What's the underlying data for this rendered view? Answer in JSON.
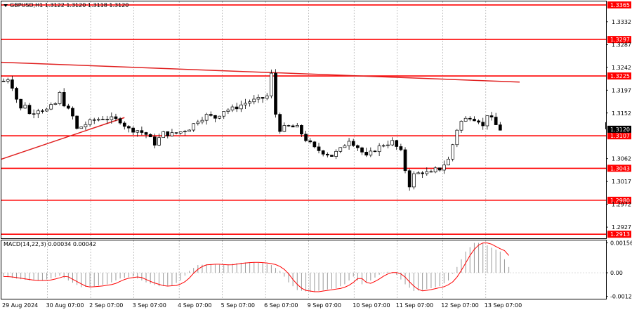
{
  "chart_data": {
    "type": "candlestick",
    "symbol_info": "GBPUSD,H1  1.3122 1.3120 1.3118 1.3120",
    "current_price": 1.312,
    "price_axis_ticks": [
      "1.3365",
      "1.3332",
      "1.3297",
      "1.3287",
      "1.3242",
      "1.3225",
      "1.3197",
      "1.3152",
      "1.3120",
      "1.3107",
      "1.3062",
      "1.3043",
      "1.3017",
      "1.2980",
      "1.2972",
      "1.2927",
      "1.2913"
    ],
    "price_range": [
      1.2905,
      1.3372
    ],
    "levels": [
      {
        "price": 1.3365,
        "label": "1.3365"
      },
      {
        "price": 1.3297,
        "label": "1.3297"
      },
      {
        "price": 1.3225,
        "label": "1.3225"
      },
      {
        "price": 1.3107,
        "label": "1.3107"
      },
      {
        "price": 1.3043,
        "label": "1.3043"
      },
      {
        "price": 1.298,
        "label": "1.2980"
      },
      {
        "price": 1.2913,
        "label": "1.2913"
      }
    ],
    "trendlines": [
      {
        "from": [
          0,
          1.3252
        ],
        "to": [
          119.5,
          1.3213
        ]
      },
      {
        "from": [
          0,
          1.3061
        ],
        "to": [
          28,
          1.3143
        ]
      }
    ],
    "x_labels": [
      "29 Aug 2024",
      "30 Aug 07:00",
      "2 Sep 07:00",
      "3 Sep 07:00",
      "4 Sep 07:00",
      "5 Sep 07:00",
      "6 Sep 07:00",
      "9 Sep 07:00",
      "10 Sep 07:00",
      "11 Sep 07:00",
      "12 Sep 07:00",
      "13 Sep 07:00"
    ],
    "close_path": [
      [
        0,
        1.3215
      ],
      [
        1,
        1.322
      ],
      [
        2,
        1.3205
      ],
      [
        3,
        1.318
      ],
      [
        4,
        1.316
      ],
      [
        5,
        1.317
      ],
      [
        6,
        1.315
      ],
      [
        8,
        1.316
      ],
      [
        10,
        1.3158
      ],
      [
        12,
        1.317
      ],
      [
        13,
        1.319
      ],
      [
        14,
        1.317
      ],
      [
        16,
        1.3145
      ],
      [
        17,
        1.312
      ],
      [
        19,
        1.313
      ],
      [
        21,
        1.3138
      ],
      [
        23,
        1.3142
      ],
      [
        25,
        1.314
      ],
      [
        27,
        1.3137
      ],
      [
        29,
        1.312
      ],
      [
        31,
        1.3118
      ],
      [
        33,
        1.311
      ],
      [
        35,
        1.3092
      ],
      [
        37,
        1.3112
      ],
      [
        39,
        1.311
      ],
      [
        41,
        1.3115
      ],
      [
        43,
        1.3122
      ],
      [
        45,
        1.3138
      ],
      [
        47,
        1.3147
      ],
      [
        49,
        1.3143
      ],
      [
        51,
        1.3157
      ],
      [
        53,
        1.316
      ],
      [
        55,
        1.3168
      ],
      [
        57,
        1.3175
      ],
      [
        59,
        1.3178
      ],
      [
        61,
        1.3185
      ],
      [
        62,
        1.3228
      ],
      [
        63,
        1.315
      ],
      [
        64,
        1.312
      ],
      [
        66,
        1.3125
      ],
      [
        68,
        1.3123
      ],
      [
        70,
        1.31
      ],
      [
        72,
        1.3082
      ],
      [
        74,
        1.3075
      ],
      [
        76,
        1.3068
      ],
      [
        78,
        1.308
      ],
      [
        80,
        1.31
      ],
      [
        82,
        1.3085
      ],
      [
        84,
        1.3065
      ],
      [
        86,
        1.308
      ],
      [
        88,
        1.309
      ],
      [
        90,
        1.3095
      ],
      [
        92,
        1.3075
      ],
      [
        93,
        1.304
      ],
      [
        94,
        1.301
      ],
      [
        95,
        1.303
      ],
      [
        97,
        1.3036
      ],
      [
        99,
        1.3032
      ],
      [
        100,
        1.304
      ],
      [
        101,
        1.3042
      ],
      [
        103,
        1.306
      ],
      [
        104,
        1.309
      ],
      [
        105,
        1.312
      ],
      [
        106,
        1.3135
      ],
      [
        108,
        1.3145
      ],
      [
        110,
        1.3138
      ],
      [
        111,
        1.3125
      ],
      [
        112,
        1.315
      ],
      [
        114,
        1.3128
      ],
      [
        115,
        1.312
      ]
    ],
    "macd": {
      "label": "MACD(14,22,3) 0.00034 0.00042",
      "params": [
        14,
        22,
        3
      ],
      "main_value": 0.00034,
      "signal_value": 0.00042,
      "axis_ticks": [
        "0.00156",
        "0.00",
        "-0.00123"
      ],
      "range": [
        -0.00135,
        0.00168
      ],
      "histogram": [
        [
          0,
          -0.0002
        ],
        [
          3,
          -0.0003
        ],
        [
          6,
          -0.0004
        ],
        [
          9,
          -0.0004
        ],
        [
          11,
          -0.0003
        ],
        [
          13,
          -0.00015
        ],
        [
          15,
          -0.0004
        ],
        [
          18,
          -0.00075
        ],
        [
          21,
          -0.0007
        ],
        [
          24,
          -0.0006
        ],
        [
          27,
          -0.0003
        ],
        [
          30,
          -0.0002
        ],
        [
          33,
          -0.0005
        ],
        [
          36,
          -0.0007
        ],
        [
          39,
          -0.00065
        ],
        [
          41,
          -0.0004
        ],
        [
          43,
          0.0001
        ],
        [
          45,
          0.0004
        ],
        [
          48,
          0.00045
        ],
        [
          51,
          0.0004
        ],
        [
          54,
          0.0005
        ],
        [
          57,
          0.00055
        ],
        [
          60,
          0.0005
        ],
        [
          62,
          0.0004
        ],
        [
          64,
          0.0001
        ],
        [
          66,
          -0.0005
        ],
        [
          68,
          -0.0009
        ],
        [
          71,
          -0.001
        ],
        [
          74,
          -0.0009
        ],
        [
          77,
          -0.0008
        ],
        [
          79,
          -0.0006
        ],
        [
          81,
          -0.0002
        ],
        [
          83,
          -0.0006
        ],
        [
          85,
          -0.0004
        ],
        [
          87,
          -0.0001
        ],
        [
          89,
          5e-05
        ],
        [
          91,
          -0.0001
        ],
        [
          93,
          -0.0006
        ],
        [
          95,
          -0.00095
        ],
        [
          97,
          -0.0009
        ],
        [
          99,
          -0.0008
        ],
        [
          101,
          -0.0007
        ],
        [
          103,
          -0.0004
        ],
        [
          105,
          0.0003
        ],
        [
          107,
          0.0011
        ],
        [
          109,
          0.00155
        ],
        [
          111,
          0.00155
        ],
        [
          113,
          0.0013
        ],
        [
          115,
          0.0011
        ],
        [
          117,
          0.0003
        ]
      ]
    }
  }
}
